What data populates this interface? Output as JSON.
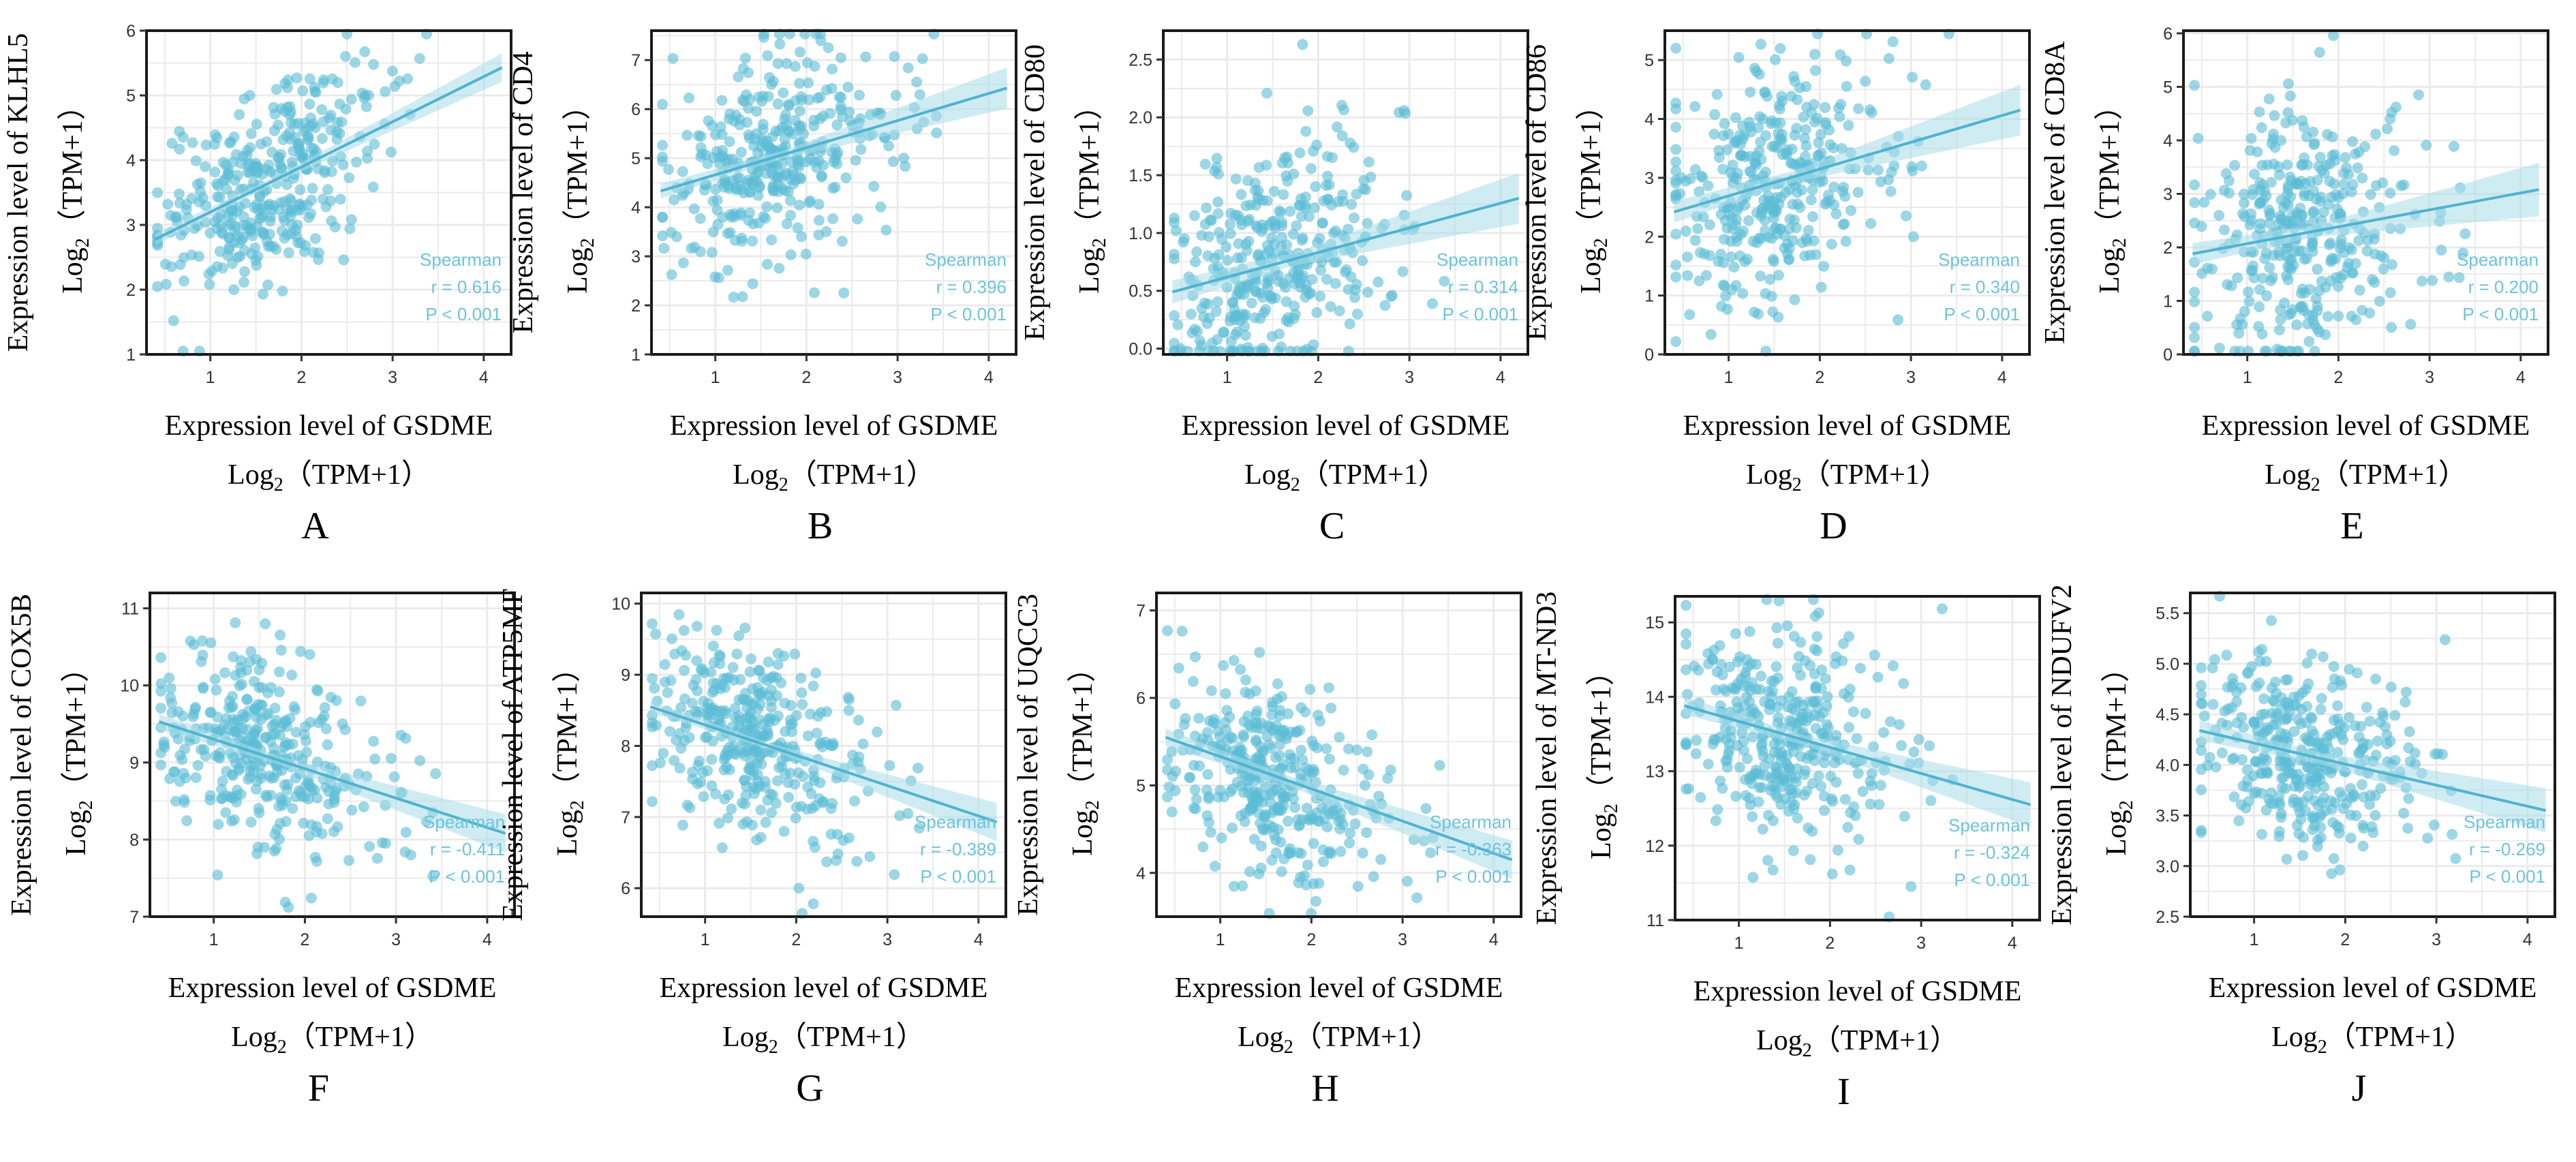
{
  "figure": {
    "point_color": "#5bbcd6",
    "line_color": "#4fb3cf",
    "band_color": "#a9dcea",
    "stat_color": "#6cc4dc",
    "grid_color": "#ebebeb",
    "x_axis_title_line1": "Expression level of GSDME",
    "x_axis_title_line2_base": "Log",
    "x_axis_title_line2_sub": "2",
    "x_axis_title_line2_rest": "（TPM+1）",
    "y_axis_unit_base": "Log",
    "y_axis_unit_sub": "2",
    "y_axis_unit_rest": "（TPM+1）",
    "stat_method": "Spearman"
  },
  "chart_data": [
    {
      "type": "scatter",
      "panel": "A",
      "ylabel": "Expression level of KLHL5",
      "xlabel": "Expression level of GSDME",
      "xlim": [
        0.3,
        4.3
      ],
      "ylim": [
        1,
        6
      ],
      "xticks": [
        1,
        2,
        3,
        4
      ],
      "yticks": [
        1,
        2,
        3,
        4,
        5,
        6
      ],
      "ytick_labels": [
        "1",
        "2",
        "3",
        "4",
        "5",
        "6"
      ],
      "fit_line": {
        "x": [
          0.4,
          4.2
        ],
        "y": [
          2.78,
          5.43
        ]
      },
      "band_halfwidth": {
        "start": 0.09,
        "end": 0.22
      },
      "point_center": {
        "x": 1.6,
        "y": 3.6
      },
      "point_spread": {
        "x": 0.55,
        "y": 0.7
      },
      "n_points": 370,
      "annotation": {
        "method": "Spearman",
        "r": "r = 0.616",
        "p": "P < 0.001"
      },
      "grid": true
    },
    {
      "type": "scatter",
      "panel": "B",
      "ylabel": "Expression level of CD4",
      "xlabel": "Expression level of GSDME",
      "xlim": [
        0.3,
        4.3
      ],
      "ylim": [
        1,
        7.6
      ],
      "xticks": [
        1,
        2,
        3,
        4
      ],
      "yticks": [
        1,
        2,
        3,
        4,
        5,
        6,
        7
      ],
      "ytick_labels": [
        "1",
        "2",
        "3",
        "4",
        "5",
        "6",
        "7"
      ],
      "fit_line": {
        "x": [
          0.4,
          4.2
        ],
        "y": [
          4.33,
          6.43
        ]
      },
      "band_halfwidth": {
        "start": 0.15,
        "end": 0.42
      },
      "point_center": {
        "x": 1.6,
        "y": 5.0
      },
      "point_spread": {
        "x": 0.55,
        "y": 1.0
      },
      "n_points": 370,
      "annotation": {
        "method": "Spearman",
        "r": "r = 0.396",
        "p": "P < 0.001"
      },
      "grid": true
    },
    {
      "type": "scatter",
      "panel": "C",
      "ylabel": "Expression level of CD80",
      "xlabel": "Expression level of GSDME",
      "xlim": [
        0.3,
        4.3
      ],
      "ylim": [
        -0.05,
        2.75
      ],
      "xticks": [
        1,
        2,
        3,
        4
      ],
      "yticks": [
        0,
        0.5,
        1,
        1.5,
        2,
        2.5
      ],
      "ytick_labels": [
        "0.0",
        "0.5",
        "1.0",
        "1.5",
        "2.0",
        "2.5"
      ],
      "fit_line": {
        "x": [
          0.4,
          4.2
        ],
        "y": [
          0.49,
          1.3
        ]
      },
      "band_halfwidth": {
        "start": 0.1,
        "end": 0.22
      },
      "point_center": {
        "x": 1.5,
        "y": 0.65
      },
      "point_spread": {
        "x": 0.55,
        "y": 0.5
      },
      "n_points": 370,
      "annotation": {
        "method": "Spearman",
        "r": "r = 0.314",
        "p": "P < 0.001"
      },
      "grid": true
    },
    {
      "type": "scatter",
      "panel": "D",
      "ylabel": "Expression level of CD86",
      "xlabel": "Expression level of GSDME",
      "xlim": [
        0.3,
        4.3
      ],
      "ylim": [
        0,
        5.5
      ],
      "xticks": [
        1,
        2,
        3,
        4
      ],
      "yticks": [
        0,
        1,
        2,
        3,
        4,
        5
      ],
      "ytick_labels": [
        "0",
        "1",
        "2",
        "3",
        "4",
        "5"
      ],
      "fit_line": {
        "x": [
          0.4,
          4.2
        ],
        "y": [
          2.42,
          4.15
        ]
      },
      "band_halfwidth": {
        "start": 0.18,
        "end": 0.43
      },
      "point_center": {
        "x": 1.5,
        "y": 2.9
      },
      "point_spread": {
        "x": 0.55,
        "y": 1.0
      },
      "n_points": 370,
      "annotation": {
        "method": "Spearman",
        "r": "r = 0.340",
        "p": "P < 0.001"
      },
      "grid": true
    },
    {
      "type": "scatter",
      "panel": "E",
      "ylabel": "Expression level of CD8A",
      "xlabel": "Expression level of GSDME",
      "xlim": [
        0.3,
        4.3
      ],
      "ylim": [
        0,
        6.05
      ],
      "xticks": [
        1,
        2,
        3,
        4
      ],
      "yticks": [
        0,
        1,
        2,
        3,
        4,
        5,
        6
      ],
      "ytick_labels": [
        "0",
        "1",
        "2",
        "3",
        "4",
        "5",
        "6"
      ],
      "fit_line": {
        "x": [
          0.4,
          4.2
        ],
        "y": [
          1.88,
          3.08
        ]
      },
      "band_halfwidth": {
        "start": 0.2,
        "end": 0.5
      },
      "point_center": {
        "x": 1.5,
        "y": 2.2
      },
      "point_spread": {
        "x": 0.55,
        "y": 1.2
      },
      "n_points": 370,
      "annotation": {
        "method": "Spearman",
        "r": "r = 0.200",
        "p": "P < 0.001"
      },
      "grid": true
    },
    {
      "type": "scatter",
      "panel": "F",
      "ylabel": "Expression level of COX5B",
      "xlabel": "Expression level of GSDME",
      "xlim": [
        0.3,
        4.3
      ],
      "ylim": [
        7,
        11.2
      ],
      "xticks": [
        1,
        2,
        3,
        4
      ],
      "yticks": [
        7,
        8,
        9,
        10,
        11
      ],
      "ytick_labels": [
        "7",
        "8",
        "9",
        "10",
        "11"
      ],
      "fit_line": {
        "x": [
          0.4,
          4.2
        ],
        "y": [
          9.53,
          8.08
        ]
      },
      "band_halfwidth": {
        "start": 0.1,
        "end": 0.25
      },
      "point_center": {
        "x": 1.5,
        "y": 9.1
      },
      "point_spread": {
        "x": 0.55,
        "y": 0.6
      },
      "n_points": 370,
      "annotation": {
        "method": "Spearman",
        "r": "r = -0.411",
        "p": "P < 0.001"
      },
      "grid": true
    },
    {
      "type": "scatter",
      "panel": "G",
      "ylabel": "Expression level of ATP5MF",
      "xlabel": "Expression level of GSDME",
      "xlim": [
        0.3,
        4.3
      ],
      "ylim": [
        5.6,
        10.15
      ],
      "xticks": [
        1,
        2,
        3,
        4
      ],
      "yticks": [
        6,
        7,
        8,
        9,
        10
      ],
      "ytick_labels": [
        "6",
        "7",
        "8",
        "9",
        "10"
      ],
      "fit_line": {
        "x": [
          0.4,
          4.2
        ],
        "y": [
          8.55,
          6.93
        ]
      },
      "band_halfwidth": {
        "start": 0.08,
        "end": 0.27
      },
      "point_center": {
        "x": 1.5,
        "y": 8.0
      },
      "point_spread": {
        "x": 0.55,
        "y": 0.65
      },
      "n_points": 370,
      "annotation": {
        "method": "Spearman",
        "r": "r = -0.389",
        "p": "P < 0.001"
      },
      "grid": true
    },
    {
      "type": "scatter",
      "panel": "H",
      "ylabel": "Expression level of UQCC3",
      "xlabel": "Expression level of GSDME",
      "xlim": [
        0.3,
        4.3
      ],
      "ylim": [
        3.5,
        7.2
      ],
      "xticks": [
        1,
        2,
        3,
        4
      ],
      "yticks": [
        4,
        5,
        6,
        7
      ],
      "ytick_labels": [
        "4",
        "5",
        "6",
        "7"
      ],
      "fit_line": {
        "x": [
          0.4,
          4.2
        ],
        "y": [
          5.55,
          4.15
        ]
      },
      "band_halfwidth": {
        "start": 0.1,
        "end": 0.22
      },
      "point_center": {
        "x": 1.5,
        "y": 5.1
      },
      "point_spread": {
        "x": 0.55,
        "y": 0.55
      },
      "n_points": 370,
      "annotation": {
        "method": "Spearman",
        "r": "r = -0.363",
        "p": "P < 0.001"
      },
      "grid": true
    },
    {
      "type": "scatter",
      "panel": "I",
      "ylabel": "Expression level of MT-ND3",
      "xlabel": "Expression level of GSDME",
      "xlim": [
        0.3,
        4.3
      ],
      "ylim": [
        11,
        15.35
      ],
      "xticks": [
        1,
        2,
        3,
        4
      ],
      "yticks": [
        11,
        12,
        13,
        14,
        15
      ],
      "ytick_labels": [
        "11",
        "12",
        "13",
        "14",
        "15"
      ],
      "fit_line": {
        "x": [
          0.4,
          4.2
        ],
        "y": [
          13.88,
          12.55
        ]
      },
      "band_halfwidth": {
        "start": 0.12,
        "end": 0.3
      },
      "point_center": {
        "x": 1.5,
        "y": 13.4
      },
      "point_spread": {
        "x": 0.55,
        "y": 0.7
      },
      "n_points": 370,
      "annotation": {
        "method": "Spearman",
        "r": "r = -0.324",
        "p": "P < 0.001"
      },
      "grid": true
    },
    {
      "type": "scatter",
      "panel": "J",
      "ylabel": "Expression level of NDUFV2",
      "xlabel": "Expression level of GSDME",
      "xlim": [
        0.3,
        4.3
      ],
      "ylim": [
        2.5,
        5.7
      ],
      "xticks": [
        1,
        2,
        3,
        4
      ],
      "yticks": [
        2.5,
        3,
        3.5,
        4,
        4.5,
        5,
        5.5
      ],
      "ytick_labels": [
        "2.5",
        "3.0",
        "3.5",
        "4.0",
        "4.5",
        "5.0",
        "5.5"
      ],
      "fit_line": {
        "x": [
          0.4,
          4.2
        ],
        "y": [
          4.34,
          3.55
        ]
      },
      "band_halfwidth": {
        "start": 0.1,
        "end": 0.22
      },
      "point_center": {
        "x": 1.5,
        "y": 4.05
      },
      "point_spread": {
        "x": 0.55,
        "y": 0.5
      },
      "n_points": 370,
      "annotation": {
        "method": "Spearman",
        "r": "r = -0.269",
        "p": "P < 0.001"
      },
      "grid": true
    }
  ]
}
